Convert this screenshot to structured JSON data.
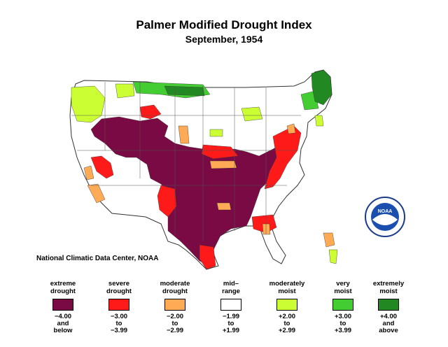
{
  "header": {
    "title": "Palmer Modified Drought Index",
    "subtitle": "September, 1954"
  },
  "credit": "National Climatic Data Center, NOAA",
  "logo": {
    "text": "NOAA"
  },
  "colors": {
    "extreme_drought": "#7a0a44",
    "severe_drought": "#ff1a1a",
    "moderate_drought": "#ffaa55",
    "mid_range": "#ffffff",
    "moderately_moist": "#ccff33",
    "very_moist": "#44cc33",
    "extremely_moist": "#228822"
  },
  "legend": [
    {
      "label": "extreme\ndrought",
      "color": "#7a0a44",
      "range": "−4.00\nand\nbelow"
    },
    {
      "label": "severe\ndrought",
      "color": "#ff1a1a",
      "range": "−3.00\nto\n−3.99"
    },
    {
      "label": "moderate\ndrought",
      "color": "#ffaa55",
      "range": "−2.00\nto\n−2.99"
    },
    {
      "label": "mid–\nrange",
      "color": "#ffffff",
      "range": "−1.99\nto\n+1.99"
    },
    {
      "label": "moderately\nmoist",
      "color": "#ccff33",
      "range": "+2.00\nto\n+2.99"
    },
    {
      "label": "very\nmoist",
      "color": "#44cc33",
      "range": "+3.00\nto\n+3.99"
    },
    {
      "label": "extremely\nmoist",
      "color": "#228822",
      "range": "+4.00\nand\nabove"
    }
  ]
}
